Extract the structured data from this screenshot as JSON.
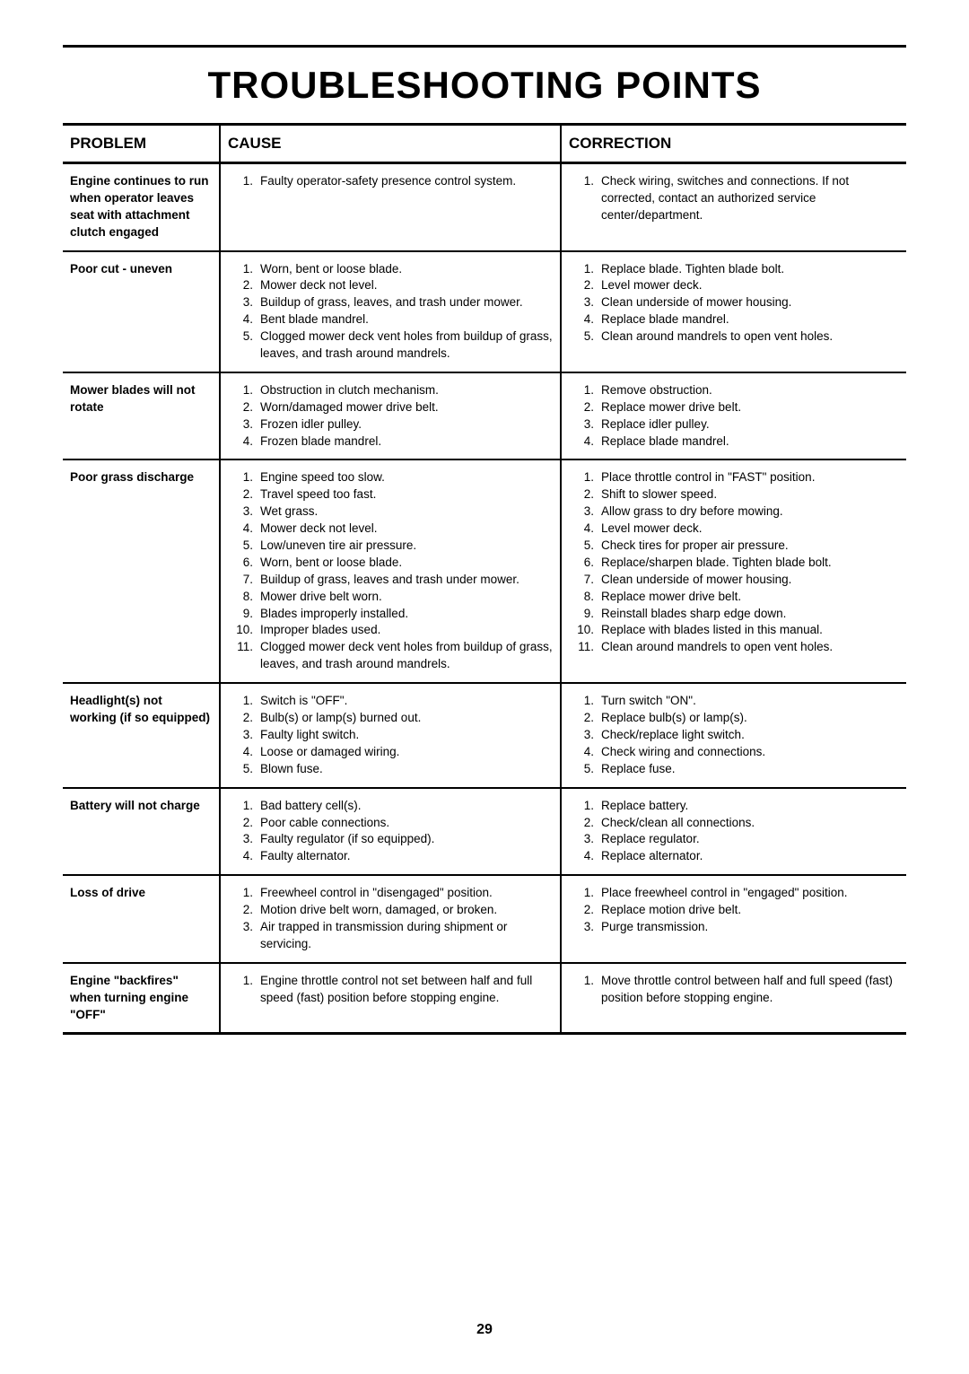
{
  "title": "TROUBLESHOOTING POINTS",
  "headers": {
    "problem": "PROBLEM",
    "cause": "CAUSE",
    "correction": "CORRECTION"
  },
  "rows": [
    {
      "problem": "Engine continues to run when operator leaves seat with attachment clutch engaged",
      "causes": [
        "Faulty operator-safety presence control system."
      ],
      "corrections": [
        "Check wiring, switches and connections. If not corrected, contact an authorized service center/department."
      ]
    },
    {
      "problem": "Poor cut - uneven",
      "causes": [
        "Worn, bent or loose blade.",
        "Mower deck not level.",
        "Buildup of grass, leaves, and trash under mower.",
        "Bent blade mandrel.",
        "Clogged mower deck vent holes from buildup of grass, leaves, and trash around mandrels."
      ],
      "corrections": [
        "Replace blade. Tighten blade bolt.",
        "Level mower deck.",
        "Clean underside of mower housing.",
        "Replace blade mandrel.",
        "Clean around mandrels to open vent holes."
      ]
    },
    {
      "problem": "Mower blades will not rotate",
      "causes": [
        "Obstruction in clutch mechanism.",
        "Worn/damaged mower drive belt.",
        "Frozen idler pulley.",
        "Frozen blade mandrel."
      ],
      "corrections": [
        "Remove obstruction.",
        "Replace mower drive belt.",
        "Replace idler pulley.",
        "Replace blade mandrel."
      ]
    },
    {
      "problem": "Poor grass discharge",
      "causes": [
        "Engine speed too slow.",
        "Travel speed too fast.",
        "Wet grass.",
        "Mower deck not level.",
        "Low/uneven tire air pressure.",
        "Worn, bent or loose blade.",
        "Buildup of grass, leaves and trash under mower.",
        "Mower drive belt worn.",
        "Blades improperly installed.",
        "Improper blades used.",
        "Clogged mower deck vent holes from buildup of grass, leaves, and trash around mandrels."
      ],
      "corrections": [
        "Place throttle control in \"FAST\" position.",
        "Shift to slower speed.",
        "Allow grass to dry before mowing.",
        "Level mower deck.",
        "Check tires for proper air pressure.",
        "Replace/sharpen blade. Tighten blade bolt.",
        "Clean underside of mower housing.",
        "Replace mower drive belt.",
        "Reinstall blades sharp edge down.",
        "Replace with blades listed in this manual.",
        "Clean around mandrels to open vent holes."
      ]
    },
    {
      "problem": "Headlight(s) not working (if so equipped)",
      "causes": [
        "Switch is \"OFF\".",
        "Bulb(s) or lamp(s) burned out.",
        "Faulty light switch.",
        "Loose or damaged wiring.",
        "Blown fuse."
      ],
      "corrections": [
        "Turn switch \"ON\".",
        "Replace bulb(s) or lamp(s).",
        "Check/replace light switch.",
        "Check wiring and connections.",
        "Replace fuse."
      ]
    },
    {
      "problem": "Battery will not charge",
      "causes": [
        "Bad battery cell(s).",
        "Poor cable connections.",
        "Faulty regulator (if so equipped).",
        "Faulty alternator."
      ],
      "corrections": [
        "Replace battery.",
        "Check/clean all connections.",
        "Replace regulator.",
        "Replace alternator."
      ]
    },
    {
      "problem": "Loss of drive",
      "causes": [
        "Freewheel control in \"disengaged\" position.",
        "Motion drive belt worn, damaged, or broken.",
        "Air trapped in transmission during shipment or servicing."
      ],
      "corrections": [
        "Place freewheel control in \"engaged\" position.",
        "Replace motion drive belt.",
        "Purge transmission."
      ]
    },
    {
      "problem": "Engine \"backfires\" when turning engine \"OFF\"",
      "causes": [
        "Engine throttle control not set between half and full speed (fast) position before stopping engine."
      ],
      "corrections": [
        "Move throttle control between half and full speed (fast) position before stopping engine."
      ]
    }
  ],
  "page_number": "29"
}
